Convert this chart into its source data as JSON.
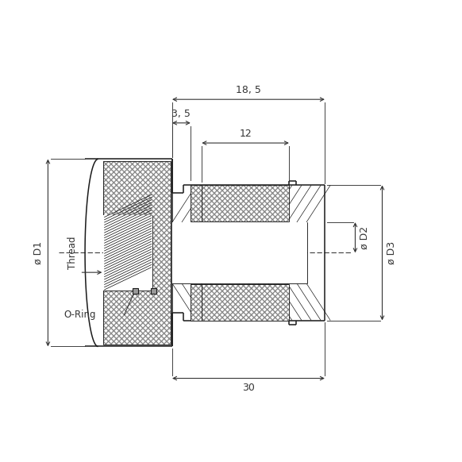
{
  "bg_color": "#ffffff",
  "line_color": "#1a1a1a",
  "dim_color": "#333333",
  "labels": {
    "D1": "ø D1",
    "D2": "ø D2",
    "D3": "ø D3",
    "thread": "Thread",
    "oring": "O-Ring",
    "dim_185": "18, 5",
    "dim_35": "3, 5",
    "dim_12": "12",
    "dim_30": "30"
  },
  "figsize": [
    5.82,
    5.82
  ],
  "dpi": 100
}
